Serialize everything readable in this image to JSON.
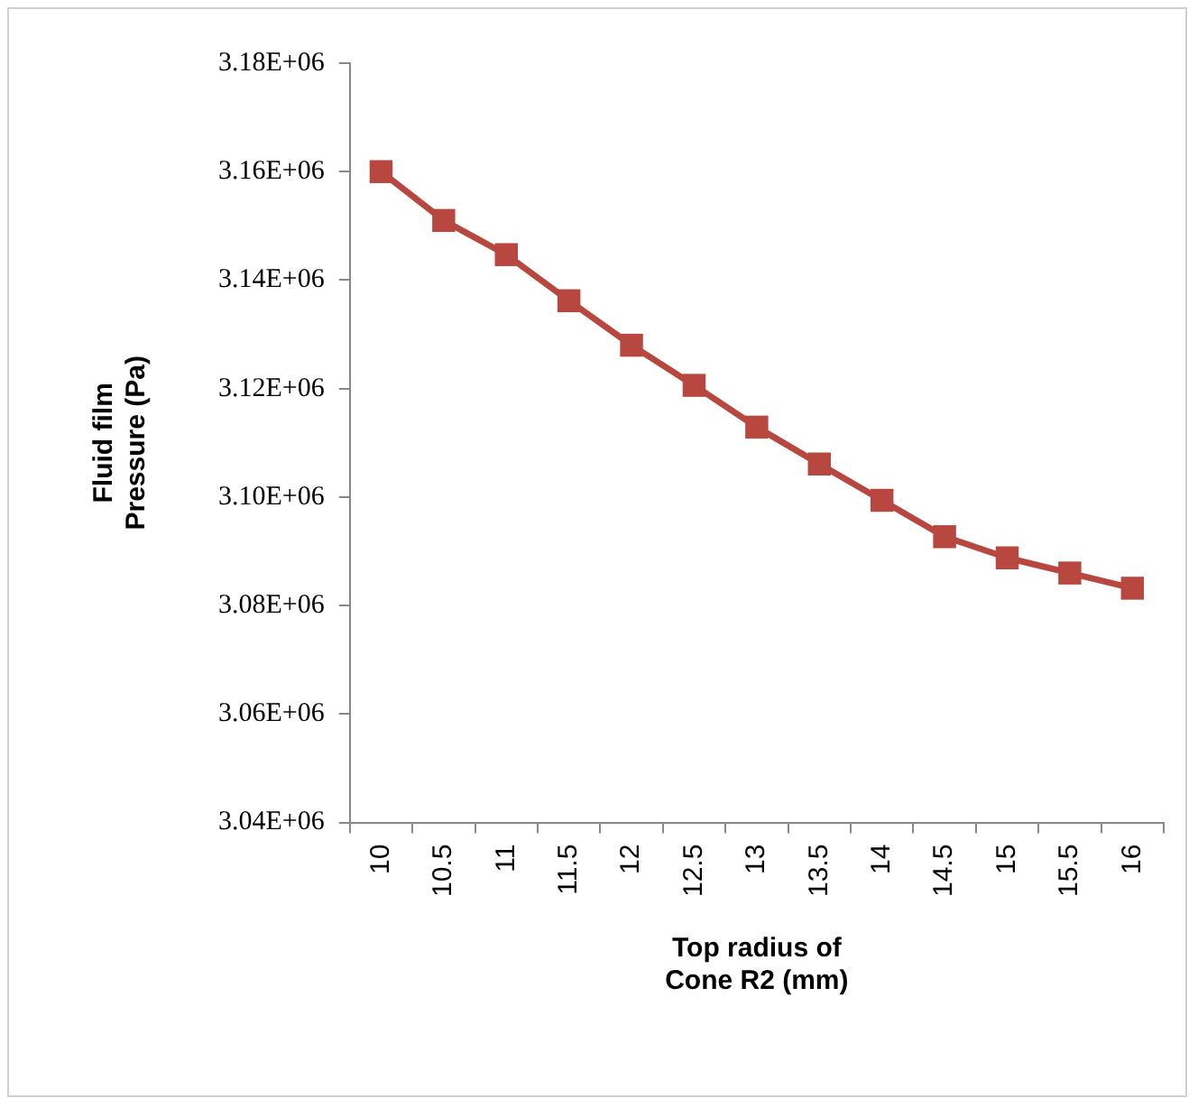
{
  "chart_data": {
    "type": "line",
    "xlabel": "Top radius of Cone R2 (mm)",
    "ylabel": "Fluid film Pressure (Pa)",
    "categories": [
      "10",
      "10.5",
      "11",
      "11.5",
      "12",
      "12.5",
      "13",
      "13.5",
      "14",
      "14.5",
      "15",
      "15.5",
      "16"
    ],
    "series": [
      {
        "color": "#b8473f",
        "values": [
          3160000,
          3151000,
          3144700,
          3136200,
          3128000,
          3120600,
          3112900,
          3106100,
          3099400,
          3092700,
          3088800,
          3086000,
          3083200
        ]
      }
    ],
    "ylim": [
      3040000,
      3180000
    ],
    "yticks": [
      {
        "value": 3040000,
        "label": "3.04E+06"
      },
      {
        "value": 3060000,
        "label": "3.06E+06"
      },
      {
        "value": 3080000,
        "label": "3.08E+06"
      },
      {
        "value": 3100000,
        "label": "3.10E+06"
      },
      {
        "value": 3120000,
        "label": "3.12E+06"
      },
      {
        "value": 3140000,
        "label": "3.14E+06"
      },
      {
        "value": 3160000,
        "label": "3.16E+06"
      },
      {
        "value": 3180000,
        "label": "3.18E+06"
      }
    ],
    "grid": false,
    "legend": false,
    "marker": "square",
    "line_style": "solid"
  }
}
